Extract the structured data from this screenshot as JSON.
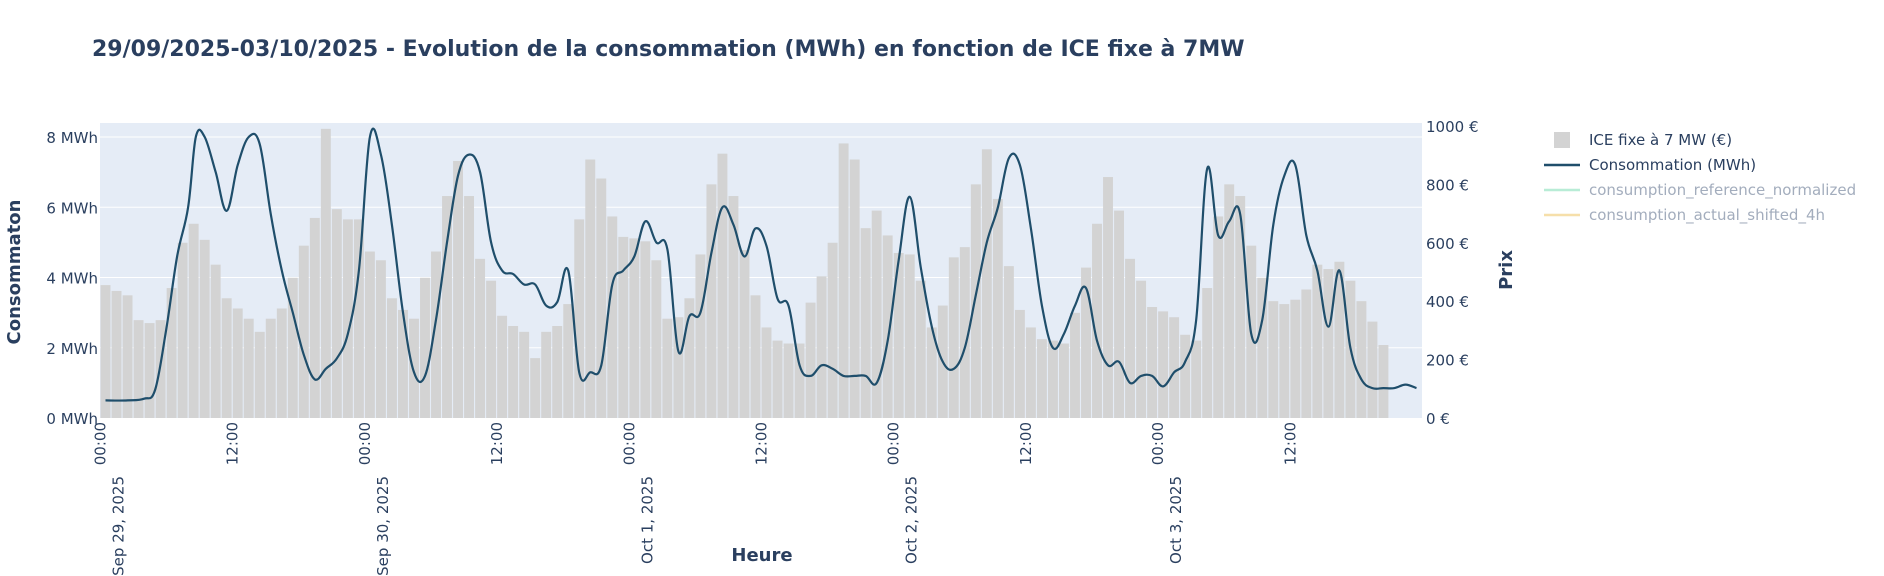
{
  "chart_data": {
    "type": "bar+line",
    "title": "29/09/2025-03/10/2025 - Evolution de la consommation (MWh) en fonction de ICE fixe à 7MW",
    "xlabel": "Heure",
    "ylabel_left": "Consommaton",
    "ylabel_right": "Prix",
    "ylim_left": [
      0,
      8.4
    ],
    "ylim_right": [
      0,
      1010
    ],
    "left_ticks": [
      {
        "value": 0,
        "label": "0 MWh"
      },
      {
        "value": 2,
        "label": "2 MWh"
      },
      {
        "value": 4,
        "label": "4 MWh"
      },
      {
        "value": 6,
        "label": "6 MWh"
      },
      {
        "value": 8,
        "label": "8 MWh"
      }
    ],
    "right_ticks": [
      {
        "value": 0,
        "label": "0 €"
      },
      {
        "value": 200,
        "label": "200 €"
      },
      {
        "value": 400,
        "label": "400 €"
      },
      {
        "value": 600,
        "label": "600 €"
      },
      {
        "value": 800,
        "label": "800 €"
      },
      {
        "value": 1000,
        "label": "1000 €"
      }
    ],
    "x_range_hours": [
      0,
      119
    ],
    "x_ticks": [
      {
        "hour": 0,
        "line1": "00:00",
        "line2": "Sep 29, 2025"
      },
      {
        "hour": 12,
        "line1": "12:00",
        "line2": ""
      },
      {
        "hour": 24,
        "line1": "00:00",
        "line2": "Sep 30, 2025"
      },
      {
        "hour": 36,
        "line1": "12:00",
        "line2": ""
      },
      {
        "hour": 48,
        "line1": "00:00",
        "line2": "Oct 1, 2025"
      },
      {
        "hour": 60,
        "line1": "12:00",
        "line2": ""
      },
      {
        "hour": 72,
        "line1": "00:00",
        "line2": "Oct 2, 2025"
      },
      {
        "hour": 84,
        "line1": "12:00",
        "line2": ""
      },
      {
        "hour": 96,
        "line1": "00:00",
        "line2": "Oct 3, 2025"
      },
      {
        "hour": 108,
        "line1": "12:00",
        "line2": ""
      }
    ],
    "series": [
      {
        "name": "ICE fixe à 7 MW (€)",
        "type": "bar",
        "axis": "right",
        "color": "#d3d3d3",
        "values": [
          455,
          435,
          420,
          335,
          325,
          335,
          445,
          600,
          665,
          610,
          525,
          410,
          375,
          340,
          295,
          340,
          375,
          480,
          590,
          685,
          990,
          715,
          680,
          680,
          570,
          540,
          410,
          370,
          340,
          480,
          570,
          760,
          880,
          760,
          545,
          470,
          350,
          315,
          295,
          205,
          295,
          315,
          390,
          680,
          885,
          820,
          690,
          620,
          615,
          605,
          540,
          340,
          345,
          410,
          560,
          800,
          905,
          760,
          575,
          420,
          310,
          265,
          255,
          255,
          395,
          485,
          600,
          940,
          885,
          650,
          710,
          625,
          565,
          560,
          470,
          310,
          385,
          550,
          585,
          800,
          920,
          750,
          520,
          370,
          310,
          270,
          265,
          255,
          360,
          515,
          665,
          825,
          710,
          545,
          470,
          380,
          365,
          345,
          285,
          265,
          445,
          690,
          800,
          760,
          590,
          480,
          400,
          390,
          405,
          440,
          525,
          510,
          535,
          470,
          400,
          330,
          250
        ]
      },
      {
        "name": "Consommation (MWh)",
        "type": "line",
        "axis": "left",
        "color": "#1f4e6b",
        "points": [
          [
            0,
            0.5
          ],
          [
            2,
            0.5
          ],
          [
            3.5,
            0.55
          ],
          [
            4.5,
            0.8
          ],
          [
            5.5,
            2.5
          ],
          [
            6.5,
            4.6
          ],
          [
            7.5,
            6.0
          ],
          [
            8.2,
            8.0
          ],
          [
            9,
            8.0
          ],
          [
            10,
            7.0
          ],
          [
            11,
            5.9
          ],
          [
            12,
            7.2
          ],
          [
            13,
            8.0
          ],
          [
            14,
            7.8
          ],
          [
            15,
            5.8
          ],
          [
            16,
            4.2
          ],
          [
            17,
            3.0
          ],
          [
            18,
            1.8
          ],
          [
            19,
            1.1
          ],
          [
            20,
            1.4
          ],
          [
            21,
            1.7
          ],
          [
            22,
            2.4
          ],
          [
            23,
            4.2
          ],
          [
            24,
            8.0
          ],
          [
            25,
            7.5
          ],
          [
            26,
            5.5
          ],
          [
            27,
            3.0
          ],
          [
            28,
            1.3
          ],
          [
            29,
            1.2
          ],
          [
            30,
            2.8
          ],
          [
            31,
            5.0
          ],
          [
            32,
            6.9
          ],
          [
            33,
            7.5
          ],
          [
            34,
            7.0
          ],
          [
            35,
            5.0
          ],
          [
            36,
            4.2
          ],
          [
            37,
            4.1
          ],
          [
            38,
            3.8
          ],
          [
            39,
            3.8
          ],
          [
            40,
            3.2
          ],
          [
            41,
            3.3
          ],
          [
            42,
            4.2
          ],
          [
            43,
            1.3
          ],
          [
            44,
            1.3
          ],
          [
            45,
            1.5
          ],
          [
            46,
            3.8
          ],
          [
            47,
            4.2
          ],
          [
            48,
            4.6
          ],
          [
            49,
            5.6
          ],
          [
            50,
            5.0
          ],
          [
            51,
            4.8
          ],
          [
            52,
            1.9
          ],
          [
            53,
            2.9
          ],
          [
            54,
            3.0
          ],
          [
            55,
            4.7
          ],
          [
            56,
            6.0
          ],
          [
            57,
            5.5
          ],
          [
            58,
            4.6
          ],
          [
            59,
            5.4
          ],
          [
            60,
            4.9
          ],
          [
            61,
            3.4
          ],
          [
            62,
            3.2
          ],
          [
            63,
            1.5
          ],
          [
            64,
            1.2
          ],
          [
            65,
            1.5
          ],
          [
            66,
            1.4
          ],
          [
            67,
            1.2
          ],
          [
            68,
            1.2
          ],
          [
            69,
            1.2
          ],
          [
            70,
            1.0
          ],
          [
            71,
            2.2
          ],
          [
            72,
            4.5
          ],
          [
            73,
            6.3
          ],
          [
            74,
            4.3
          ],
          [
            75,
            2.6
          ],
          [
            76,
            1.6
          ],
          [
            77,
            1.4
          ],
          [
            78,
            2.0
          ],
          [
            79,
            3.5
          ],
          [
            80,
            5.0
          ],
          [
            81,
            6.0
          ],
          [
            82,
            7.4
          ],
          [
            83,
            7.2
          ],
          [
            84,
            5.4
          ],
          [
            85,
            3.2
          ],
          [
            86,
            2.0
          ],
          [
            87,
            2.4
          ],
          [
            88,
            3.2
          ],
          [
            89,
            3.7
          ],
          [
            90,
            2.2
          ],
          [
            91,
            1.5
          ],
          [
            92,
            1.6
          ],
          [
            93,
            1.0
          ],
          [
            94,
            1.2
          ],
          [
            95,
            1.2
          ],
          [
            96,
            0.9
          ],
          [
            97,
            1.3
          ],
          [
            98,
            1.6
          ],
          [
            99,
            2.8
          ],
          [
            100,
            7.1
          ],
          [
            101,
            5.2
          ],
          [
            102,
            5.6
          ],
          [
            103,
            5.8
          ],
          [
            104,
            2.4
          ],
          [
            105,
            2.8
          ],
          [
            106,
            5.5
          ],
          [
            107,
            6.9
          ],
          [
            108,
            7.2
          ],
          [
            109,
            5.2
          ],
          [
            110,
            4.2
          ],
          [
            111,
            2.6
          ],
          [
            112,
            4.2
          ],
          [
            113,
            2.0
          ],
          [
            114,
            1.1
          ],
          [
            115,
            0.85
          ],
          [
            116,
            0.85
          ],
          [
            117,
            0.85
          ],
          [
            118,
            0.95
          ],
          [
            119,
            0.85
          ]
        ]
      }
    ],
    "legend": [
      {
        "label": "ICE fixe à 7 MW (€)",
        "marker": "square",
        "color": "#d3d3d3",
        "text_color": "#2a3f5f"
      },
      {
        "label": "Consommation (MWh)",
        "marker": "line",
        "color": "#1f4e6b",
        "text_color": "#2a3f5f"
      },
      {
        "label": "consumption_reference_normalized",
        "marker": "line",
        "color": "#b8ecd6",
        "text_color": "#a3adbd"
      },
      {
        "label": "consumption_actual_shifted_4h",
        "marker": "line",
        "color": "#f6dfaa",
        "text_color": "#a3adbd"
      }
    ],
    "colors": {
      "plot_bg": "#e5ecf6",
      "grid": "#ffffff",
      "text": "#2a3f5f"
    }
  }
}
